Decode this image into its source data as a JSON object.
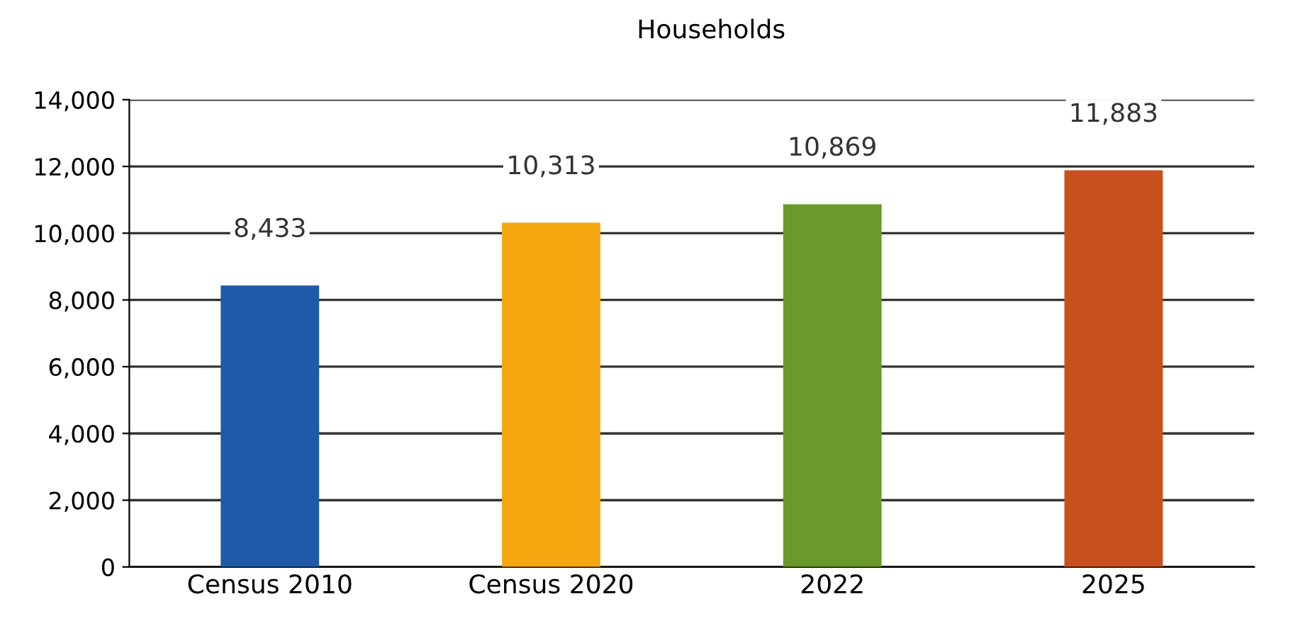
{
  "chart_data": {
    "type": "bar",
    "title": "Households",
    "categories": [
      "Census 2010",
      "Census 2020",
      "2022",
      "2025"
    ],
    "values": [
      8433,
      10313,
      10869,
      11883
    ],
    "colors": [
      "#1f5aa8",
      "#f5a80f",
      "#6a9a2a",
      "#c8501e"
    ],
    "ylim": [
      0,
      14000
    ],
    "yticks": [
      {
        "value": 0,
        "label": "0"
      },
      {
        "value": 2000,
        "label": "2,000"
      },
      {
        "value": 4000,
        "label": "4,000"
      },
      {
        "value": 6000,
        "label": "6,000"
      },
      {
        "value": 8000,
        "label": "8,000"
      },
      {
        "value": 10000,
        "label": "10,000"
      },
      {
        "value": 12000,
        "label": "12,000"
      },
      {
        "value": 14000,
        "label": "14,000"
      }
    ],
    "value_labels": [
      "8,433",
      "10,313",
      "10,869",
      "11,883"
    ],
    "grid": "y"
  }
}
